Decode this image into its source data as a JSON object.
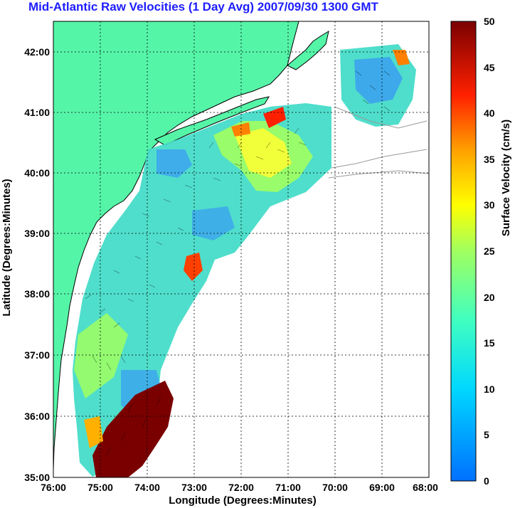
{
  "title": "Mid-Atlantic Raw Velocities (1 Day Avg) 2007/09/30 1300 GMT",
  "x_axis": {
    "label": "Longitude (Degrees:Minutes)",
    "ticks": [
      "76:00",
      "75:00",
      "74:00",
      "73:00",
      "72:00",
      "71:00",
      "70:00",
      "69:00",
      "68:00"
    ]
  },
  "y_axis": {
    "label": "Latitude (Degrees:Minutes)",
    "ticks": [
      "35:00",
      "36:00",
      "37:00",
      "38:00",
      "39:00",
      "40:00",
      "41:00",
      "42:00"
    ]
  },
  "colorbar": {
    "label": "Surface Velocity (cm/s)",
    "ticks": [
      "0",
      "5",
      "10",
      "15",
      "20",
      "25",
      "30",
      "35",
      "40",
      "45",
      "50"
    ],
    "range": [
      0,
      50
    ]
  },
  "colors": {
    "land": "#55f5a8",
    "ocean": "#ffffff",
    "grid": "#000000",
    "title": "#1d1dff"
  }
}
